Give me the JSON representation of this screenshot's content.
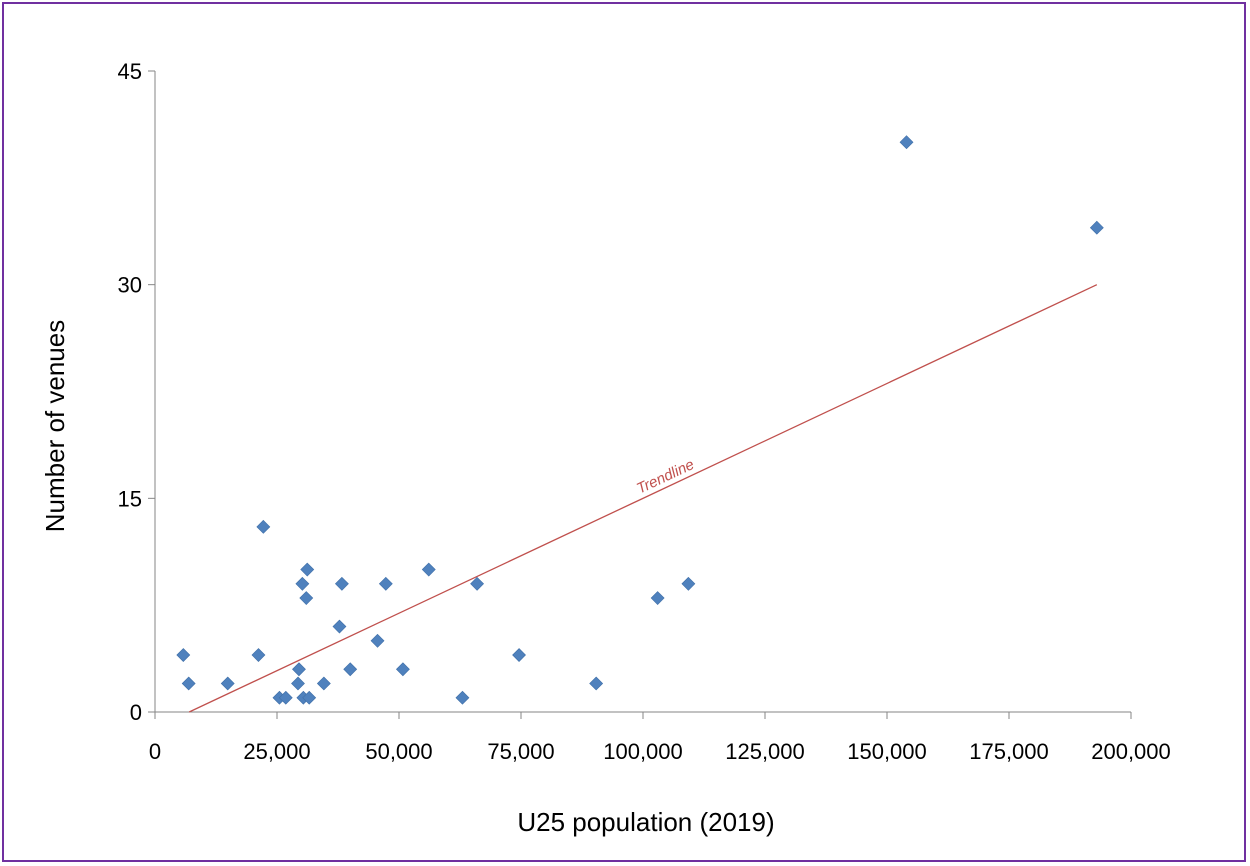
{
  "chart_data": {
    "type": "scatter",
    "title": "",
    "xlabel": "U25 population (2019)",
    "ylabel": "Number of venues",
    "xlim": [
      0,
      200000
    ],
    "ylim": [
      0,
      45
    ],
    "x_ticks": [
      "0",
      "25,000",
      "50,000",
      "75,000",
      "100,000",
      "125,000",
      "150,000",
      "175,000",
      "200,000"
    ],
    "y_ticks": [
      "0",
      "15",
      "30",
      "45"
    ],
    "grid": false,
    "legend": "none",
    "marker_color": "#4f81bd",
    "frame_color": "#7030a0",
    "series": [
      {
        "points": [
          {
            "x": 5800,
            "y": 4
          },
          {
            "x": 6900,
            "y": 2
          },
          {
            "x": 14900,
            "y": 2
          },
          {
            "x": 21200,
            "y": 4
          },
          {
            "x": 22200,
            "y": 13
          },
          {
            "x": 25500,
            "y": 1
          },
          {
            "x": 26800,
            "y": 1
          },
          {
            "x": 29300,
            "y": 2
          },
          {
            "x": 29500,
            "y": 3
          },
          {
            "x": 30200,
            "y": 9
          },
          {
            "x": 30400,
            "y": 1
          },
          {
            "x": 31000,
            "y": 8
          },
          {
            "x": 31200,
            "y": 10
          },
          {
            "x": 31600,
            "y": 1
          },
          {
            "x": 34600,
            "y": 2
          },
          {
            "x": 37800,
            "y": 6
          },
          {
            "x": 38300,
            "y": 9
          },
          {
            "x": 40000,
            "y": 3
          },
          {
            "x": 45600,
            "y": 5
          },
          {
            "x": 47300,
            "y": 9
          },
          {
            "x": 50800,
            "y": 3
          },
          {
            "x": 56100,
            "y": 10
          },
          {
            "x": 63000,
            "y": 1
          },
          {
            "x": 66000,
            "y": 9
          },
          {
            "x": 74600,
            "y": 4
          },
          {
            "x": 90400,
            "y": 2
          },
          {
            "x": 103000,
            "y": 8
          },
          {
            "x": 109300,
            "y": 9
          },
          {
            "x": 154000,
            "y": 40
          },
          {
            "x": 193000,
            "y": 34
          }
        ]
      }
    ],
    "trendline": {
      "label": "Trendline",
      "color": "#c0504d",
      "start": {
        "x": 7000,
        "y": 0
      },
      "end": {
        "x": 193000,
        "y": 30
      }
    }
  }
}
